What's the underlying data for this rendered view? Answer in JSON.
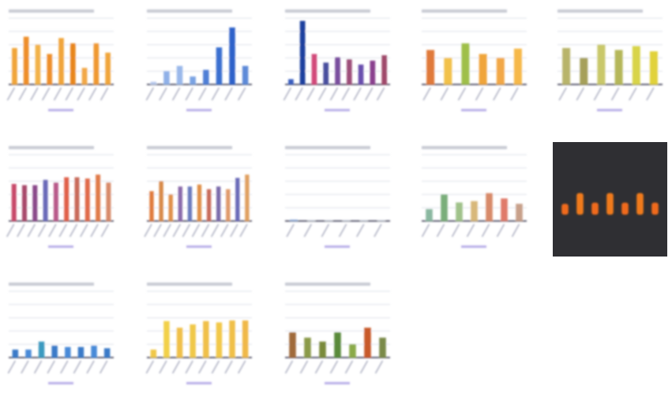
{
  "thumbnails": [
    {
      "bg": "#ffffff",
      "bars": [
        0.55,
        0.72,
        0.6,
        0.46,
        0.7,
        0.62,
        0.25,
        0.62,
        0.48
      ],
      "colors": [
        "#f0a53a",
        "#ee8f2a",
        "#f2b24a",
        "#ee8f2a",
        "#f0a53a",
        "#e8861c",
        "#f2a846",
        "#ef9933",
        "#f0a53a"
      ]
    },
    {
      "bg": "#ffffff",
      "bars": [
        0.04,
        0.2,
        0.28,
        0.12,
        0.22,
        0.56,
        0.86,
        0.28
      ],
      "colors": [
        "#b7c9ee",
        "#8fb0e8",
        "#9ab8ea",
        "#7aa3e3",
        "#4f7fd6",
        "#3a6fd0",
        "#2e62c9",
        "#5d8ad8"
      ]
    },
    {
      "bg": "#ffffff",
      "bars": [
        0.08,
        0.96,
        0.46,
        0.33,
        0.41,
        0.38,
        0.3,
        0.36,
        0.44
      ],
      "colors": [
        "#3a5fbf",
        "#1d3f9e",
        "#d24a7a",
        "#4a4f9e",
        "#7a4f9e",
        "#9e4f7a",
        "#6a4fae",
        "#8a3f8e",
        "#a04a6a"
      ]
    },
    {
      "bg": "#ffffff",
      "bars": [
        0.52,
        0.4,
        0.62,
        0.46,
        0.4,
        0.54
      ],
      "colors": [
        "#e07a3a",
        "#f2c14a",
        "#9fbf4a",
        "#f0a53a",
        "#f2a846",
        "#f6b84a"
      ]
    },
    {
      "bg": "#ffffff",
      "bars": [
        0.55,
        0.4,
        0.6,
        0.52,
        0.58,
        0.5
      ],
      "colors": [
        "#b8b46a",
        "#a6a05a",
        "#c9c86a",
        "#b5b75a",
        "#d8d44a",
        "#e1d23a"
      ]
    },
    {
      "bg": "#ffffff",
      "bars": [
        0.56,
        0.54,
        0.54,
        0.62,
        0.58,
        0.66,
        0.66,
        0.64,
        0.7,
        0.58
      ],
      "colors": [
        "#c84a6a",
        "#a84a6a",
        "#8a4a8a",
        "#6a6ab8",
        "#b85a8a",
        "#e0604a",
        "#c86a5a",
        "#e06a4a",
        "#e07a4a",
        "#d88a6a"
      ]
    },
    {
      "bg": "#ffffff",
      "bars": [
        0.45,
        0.6,
        0.4,
        0.52,
        0.52,
        0.55,
        0.48,
        0.52,
        0.48,
        0.65,
        0.7
      ],
      "colors": [
        "#e07a3a",
        "#d88a4a",
        "#e0904a",
        "#8a6aaa",
        "#6a7abe",
        "#e0904a",
        "#c86a5a",
        "#7a6aaa",
        "#e09a6a",
        "#6a6ab8",
        "#e0a060"
      ]
    },
    {
      "bg": "#ffffff",
      "bars": [
        0.02,
        0.01,
        0.01,
        0.01,
        0.01,
        0.01
      ],
      "colors": [
        "#8aa8d8",
        "#c8d0e0",
        "#c8d0e0",
        "#c8d0e0",
        "#c8d0e0",
        "#c8d0e0"
      ]
    },
    {
      "bg": "#ffffff",
      "bars": [
        0.18,
        0.4,
        0.28,
        0.3,
        0.42,
        0.34,
        0.26
      ],
      "colors": [
        "#8ab8a0",
        "#7aae7a",
        "#a0c28a",
        "#d8b87a",
        "#d88a6a",
        "#e07a6a",
        "#c8a08a"
      ]
    },
    {
      "bg": "#2f2f33",
      "bars": [
        0.18,
        0.36,
        0.2,
        0.36,
        0.2,
        0.36,
        0.2
      ],
      "colors": [
        "#f06a1a",
        "#f07a1a",
        "#f06a1a",
        "#f07a1a",
        "#f06a1a",
        "#f07a1a",
        "#f06a1a"
      ]
    },
    {
      "bg": "#ffffff",
      "bars": [
        0.12,
        0.12,
        0.24,
        0.18,
        0.16,
        0.16,
        0.18,
        0.14
      ],
      "colors": [
        "#3a7ac8",
        "#4a8ad8",
        "#3a9ac0",
        "#3a7ac8",
        "#4a8ad8",
        "#3a7ac8",
        "#4a8ad8",
        "#3a7ac8"
      ]
    },
    {
      "bg": "#ffffff",
      "bars": [
        0.12,
        0.55,
        0.45,
        0.5,
        0.55,
        0.53,
        0.56,
        0.56
      ],
      "colors": [
        "#f0c84a",
        "#f2d04a",
        "#f0c04a",
        "#f0c84a",
        "#f0c04a",
        "#f2c84a",
        "#f0c04a",
        "#f0b84a"
      ]
    },
    {
      "bg": "#ffffff",
      "bars": [
        0.38,
        0.3,
        0.24,
        0.38,
        0.2,
        0.45,
        0.3
      ],
      "colors": [
        "#a06a3a",
        "#8a9a4a",
        "#7a8a3a",
        "#5a8a3a",
        "#8aaa4a",
        "#c85a2a",
        "#7a8a4a"
      ]
    }
  ]
}
